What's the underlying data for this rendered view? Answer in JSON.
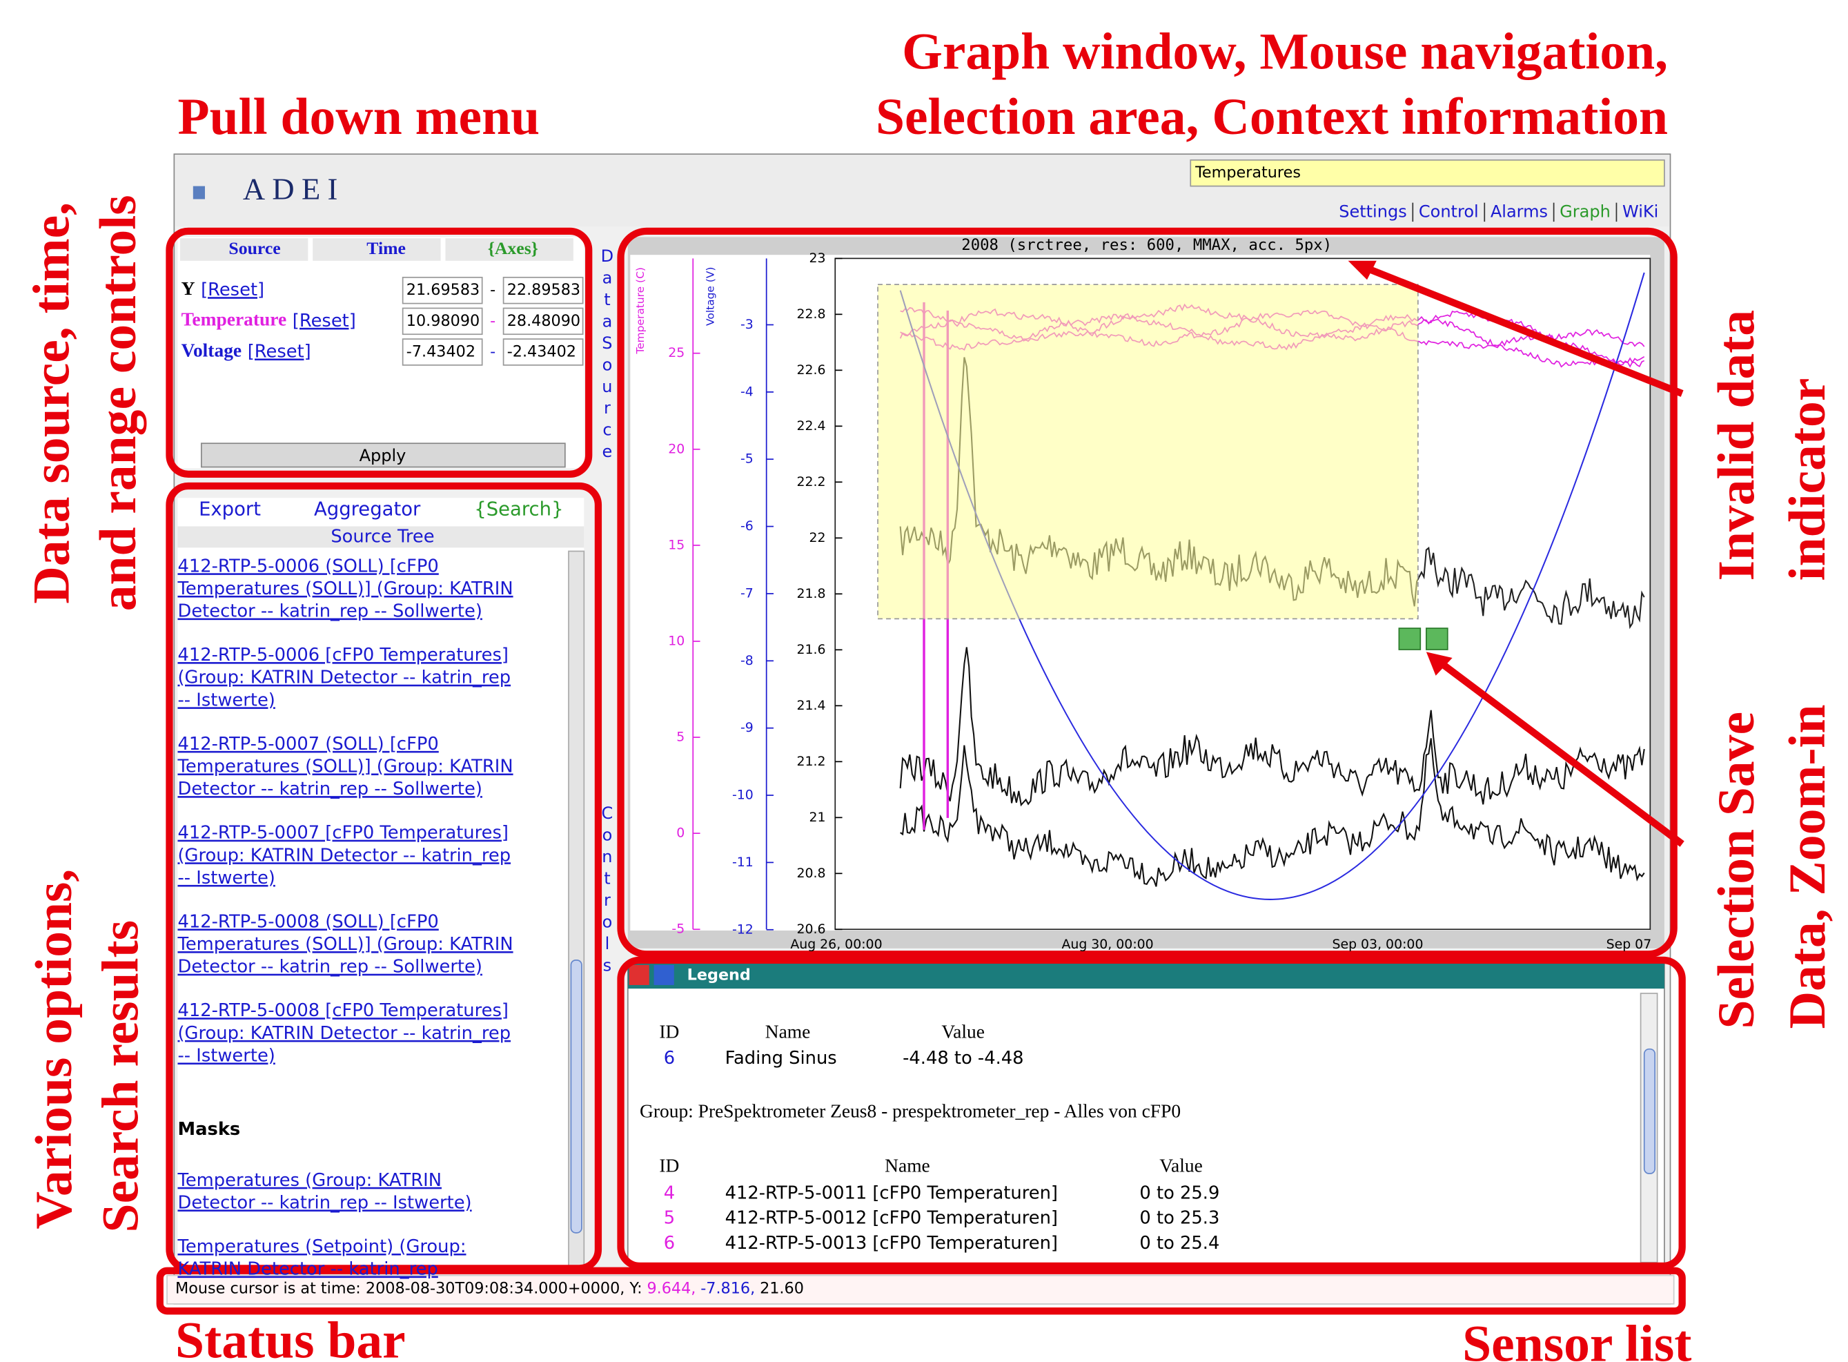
{
  "annotations": {
    "graph_window": [
      "Graph window, Mouse navigation,",
      "Selection area, Context information"
    ],
    "pull_down_menu": "Pull down menu",
    "data_source": [
      "Data source, time,",
      "and range controls"
    ],
    "various": [
      "Various options,",
      "Search results"
    ],
    "invalid": [
      "Invalid data",
      "indicator"
    ],
    "selection": [
      "Selection Save",
      "Data, Zoom-in"
    ],
    "status_bar": "Status bar",
    "sensor_list": "Sensor list"
  },
  "header": {
    "logo": "ADEI",
    "search": "Temperatures",
    "nav": [
      "Settings",
      "Control",
      "Alarms",
      "Graph",
      "WiKi"
    ]
  },
  "controls": {
    "tabs": [
      "Source",
      "Time",
      "{Axes}"
    ],
    "rows": [
      {
        "label": "Y",
        "reset": "[Reset]",
        "min": "21.69583",
        "sep": "-",
        "max": "22.89583"
      },
      {
        "label": "Temperature",
        "reset": "[Reset]",
        "min": "10.98090",
        "sep": "-",
        "max": "28.48090"
      },
      {
        "label": "Voltage",
        "reset": "[Reset]",
        "min": "-7.43402",
        "sep": "-",
        "max": "-2.43402"
      }
    ],
    "apply": "Apply"
  },
  "side_tabs": [
    "DataSource",
    "Controls"
  ],
  "options": {
    "tabs": [
      "Export",
      "Aggregator",
      "{Search}"
    ],
    "title": "Source Tree",
    "items": [
      [
        "412-RTP-5-0006 (SOLL) [cFP0",
        "Temperatures (SOLL)] (Group: KATRIN",
        "Detector -- katrin_rep -- Sollwerte)"
      ],
      [
        "412-RTP-5-0006 [cFP0 Temperatures]",
        "(Group: KATRIN Detector -- katrin_rep",
        "-- Istwerte)"
      ],
      [
        "412-RTP-5-0007 (SOLL) [cFP0",
        "Temperatures (SOLL)] (Group: KATRIN",
        "Detector -- katrin_rep -- Sollwerte)"
      ],
      [
        "412-RTP-5-0007 [cFP0 Temperatures]",
        "(Group: KATRIN Detector -- katrin_rep",
        "-- Istwerte)"
      ],
      [
        "412-RTP-5-0008 (SOLL) [cFP0",
        "Temperatures (SOLL)] (Group: KATRIN",
        "Detector -- katrin_rep -- Sollwerte)"
      ],
      [
        "412-RTP-5-0008 [cFP0 Temperatures]",
        "(Group: KATRIN Detector -- katrin_rep",
        "-- Istwerte)"
      ]
    ],
    "masks_title": "Masks",
    "masks": [
      [
        "Temperatures (Group: KATRIN",
        "Detector -- katrin_rep -- Istwerte)"
      ],
      [
        "Temperatures (Setpoint) (Group:",
        "KATRIN Detector -- katrin_rep"
      ]
    ]
  },
  "graph": {
    "title": "2008 (srctree, res: 600, MMAX, acc. 5px)",
    "temp_label": "Temperature (C)",
    "volt_label": "Voltage (V)",
    "temp_ticks": [
      "25",
      "20",
      "15",
      "10",
      "5",
      "0",
      "-5"
    ],
    "volt_ticks": [
      "-3",
      "-4",
      "-5",
      "-6",
      "-7",
      "-8",
      "-9",
      "-10",
      "-11",
      "-12"
    ],
    "y_ticks": [
      "23",
      "22.8",
      "22.6",
      "22.4",
      "22.2",
      "22",
      "21.8",
      "21.6",
      "21.4",
      "21.2",
      "21",
      "20.8",
      "20.6"
    ],
    "x_ticks": [
      "Aug 26, 00:00",
      "Aug 30, 00:00",
      "Sep 03, 00:00",
      "Sep 07"
    ]
  },
  "legend": {
    "title": "Legend",
    "headers": [
      "ID",
      "Name",
      "Value"
    ],
    "rows": [
      [
        "6",
        "Fading Sinus",
        "-4.48 to -4.48"
      ]
    ],
    "group": "Group: PreSpektrometer Zeus8 - prespektrometer_rep - Alles von cFP0",
    "group_headers": [
      "ID",
      "Name",
      "Value"
    ],
    "group_rows": [
      [
        "4",
        "412-RTP-5-0011 [cFP0 Temperaturen]",
        "0 to 25.9"
      ],
      [
        "5",
        "412-RTP-5-0012 [cFP0 Temperaturen]",
        "0 to 25.3"
      ],
      [
        "6",
        "412-RTP-5-0013 [cFP0 Temperaturen]",
        "0 to 25.4"
      ]
    ]
  },
  "status": {
    "parts": [
      "Mouse cursor is at time: 2008-08-30T09:08:34.000+0000, Y:",
      "9.644,",
      "-7.816,",
      "21.60"
    ]
  }
}
